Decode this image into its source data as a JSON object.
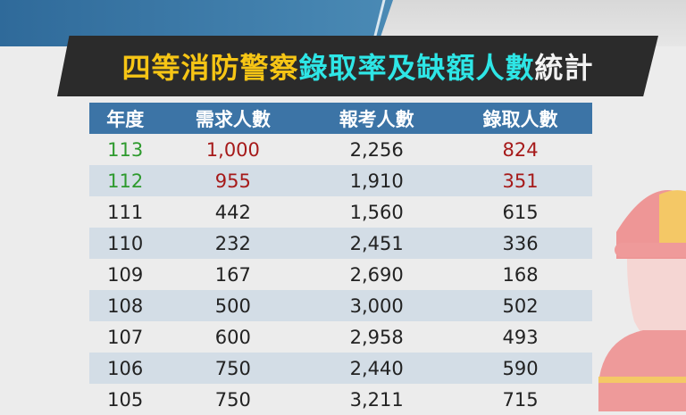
{
  "title": {
    "part1": "四等消防警察",
    "part2": "錄取率及缺額人數",
    "part3": "統計"
  },
  "colors": {
    "title_yellow": "#f6c515",
    "title_cyan": "#2ee6e6",
    "header_blue": "#3c74a6",
    "highlight_green": "#2e9a2e",
    "highlight_red": "#a61a1a"
  },
  "chart_data": {
    "type": "table",
    "columns": [
      "年度",
      "需求人數",
      "報考人數",
      "錄取人數"
    ],
    "rows": [
      [
        "113",
        "1,000",
        "2,256",
        "824"
      ],
      [
        "112",
        "955",
        "1,910",
        "351"
      ],
      [
        "111",
        "442",
        "1,560",
        "615"
      ],
      [
        "110",
        "232",
        "2,451",
        "336"
      ],
      [
        "109",
        "167",
        "2,690",
        "168"
      ],
      [
        "108",
        "500",
        "3,000",
        "502"
      ],
      [
        "107",
        "600",
        "2,958",
        "493"
      ],
      [
        "106",
        "750",
        "2,440",
        "590"
      ],
      [
        "105",
        "750",
        "3,211",
        "715"
      ]
    ]
  },
  "decor": {
    "illustration": "firefighter-icon"
  }
}
